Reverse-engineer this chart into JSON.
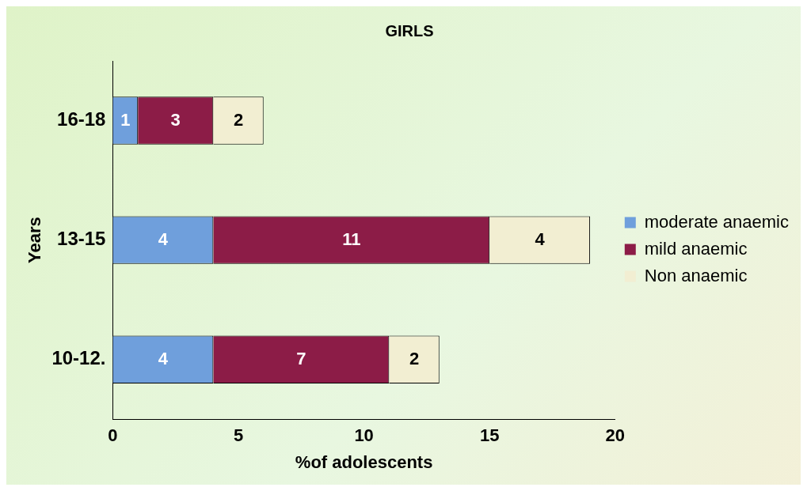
{
  "chart_data": {
    "type": "bar",
    "orientation": "horizontal",
    "stacked": true,
    "title": "GIRLS",
    "xlabel": "%of adolescents",
    "ylabel": "Years",
    "categories": [
      "16-18",
      "13-15",
      "10-12."
    ],
    "series": [
      {
        "name": "moderate anaemic",
        "color": "#6f9fdc",
        "values": [
          1,
          4,
          4
        ]
      },
      {
        "name": "mild anaemic",
        "color": "#8c1c47",
        "values": [
          3,
          11,
          7
        ]
      },
      {
        "name": "Non anaemic",
        "color": "#f2eed2",
        "values": [
          2,
          4,
          2
        ]
      }
    ],
    "xlim": [
      0,
      20
    ],
    "xticks": [
      0,
      5,
      10,
      15,
      20
    ],
    "grid": false,
    "legend": "right",
    "data_labels": true
  }
}
